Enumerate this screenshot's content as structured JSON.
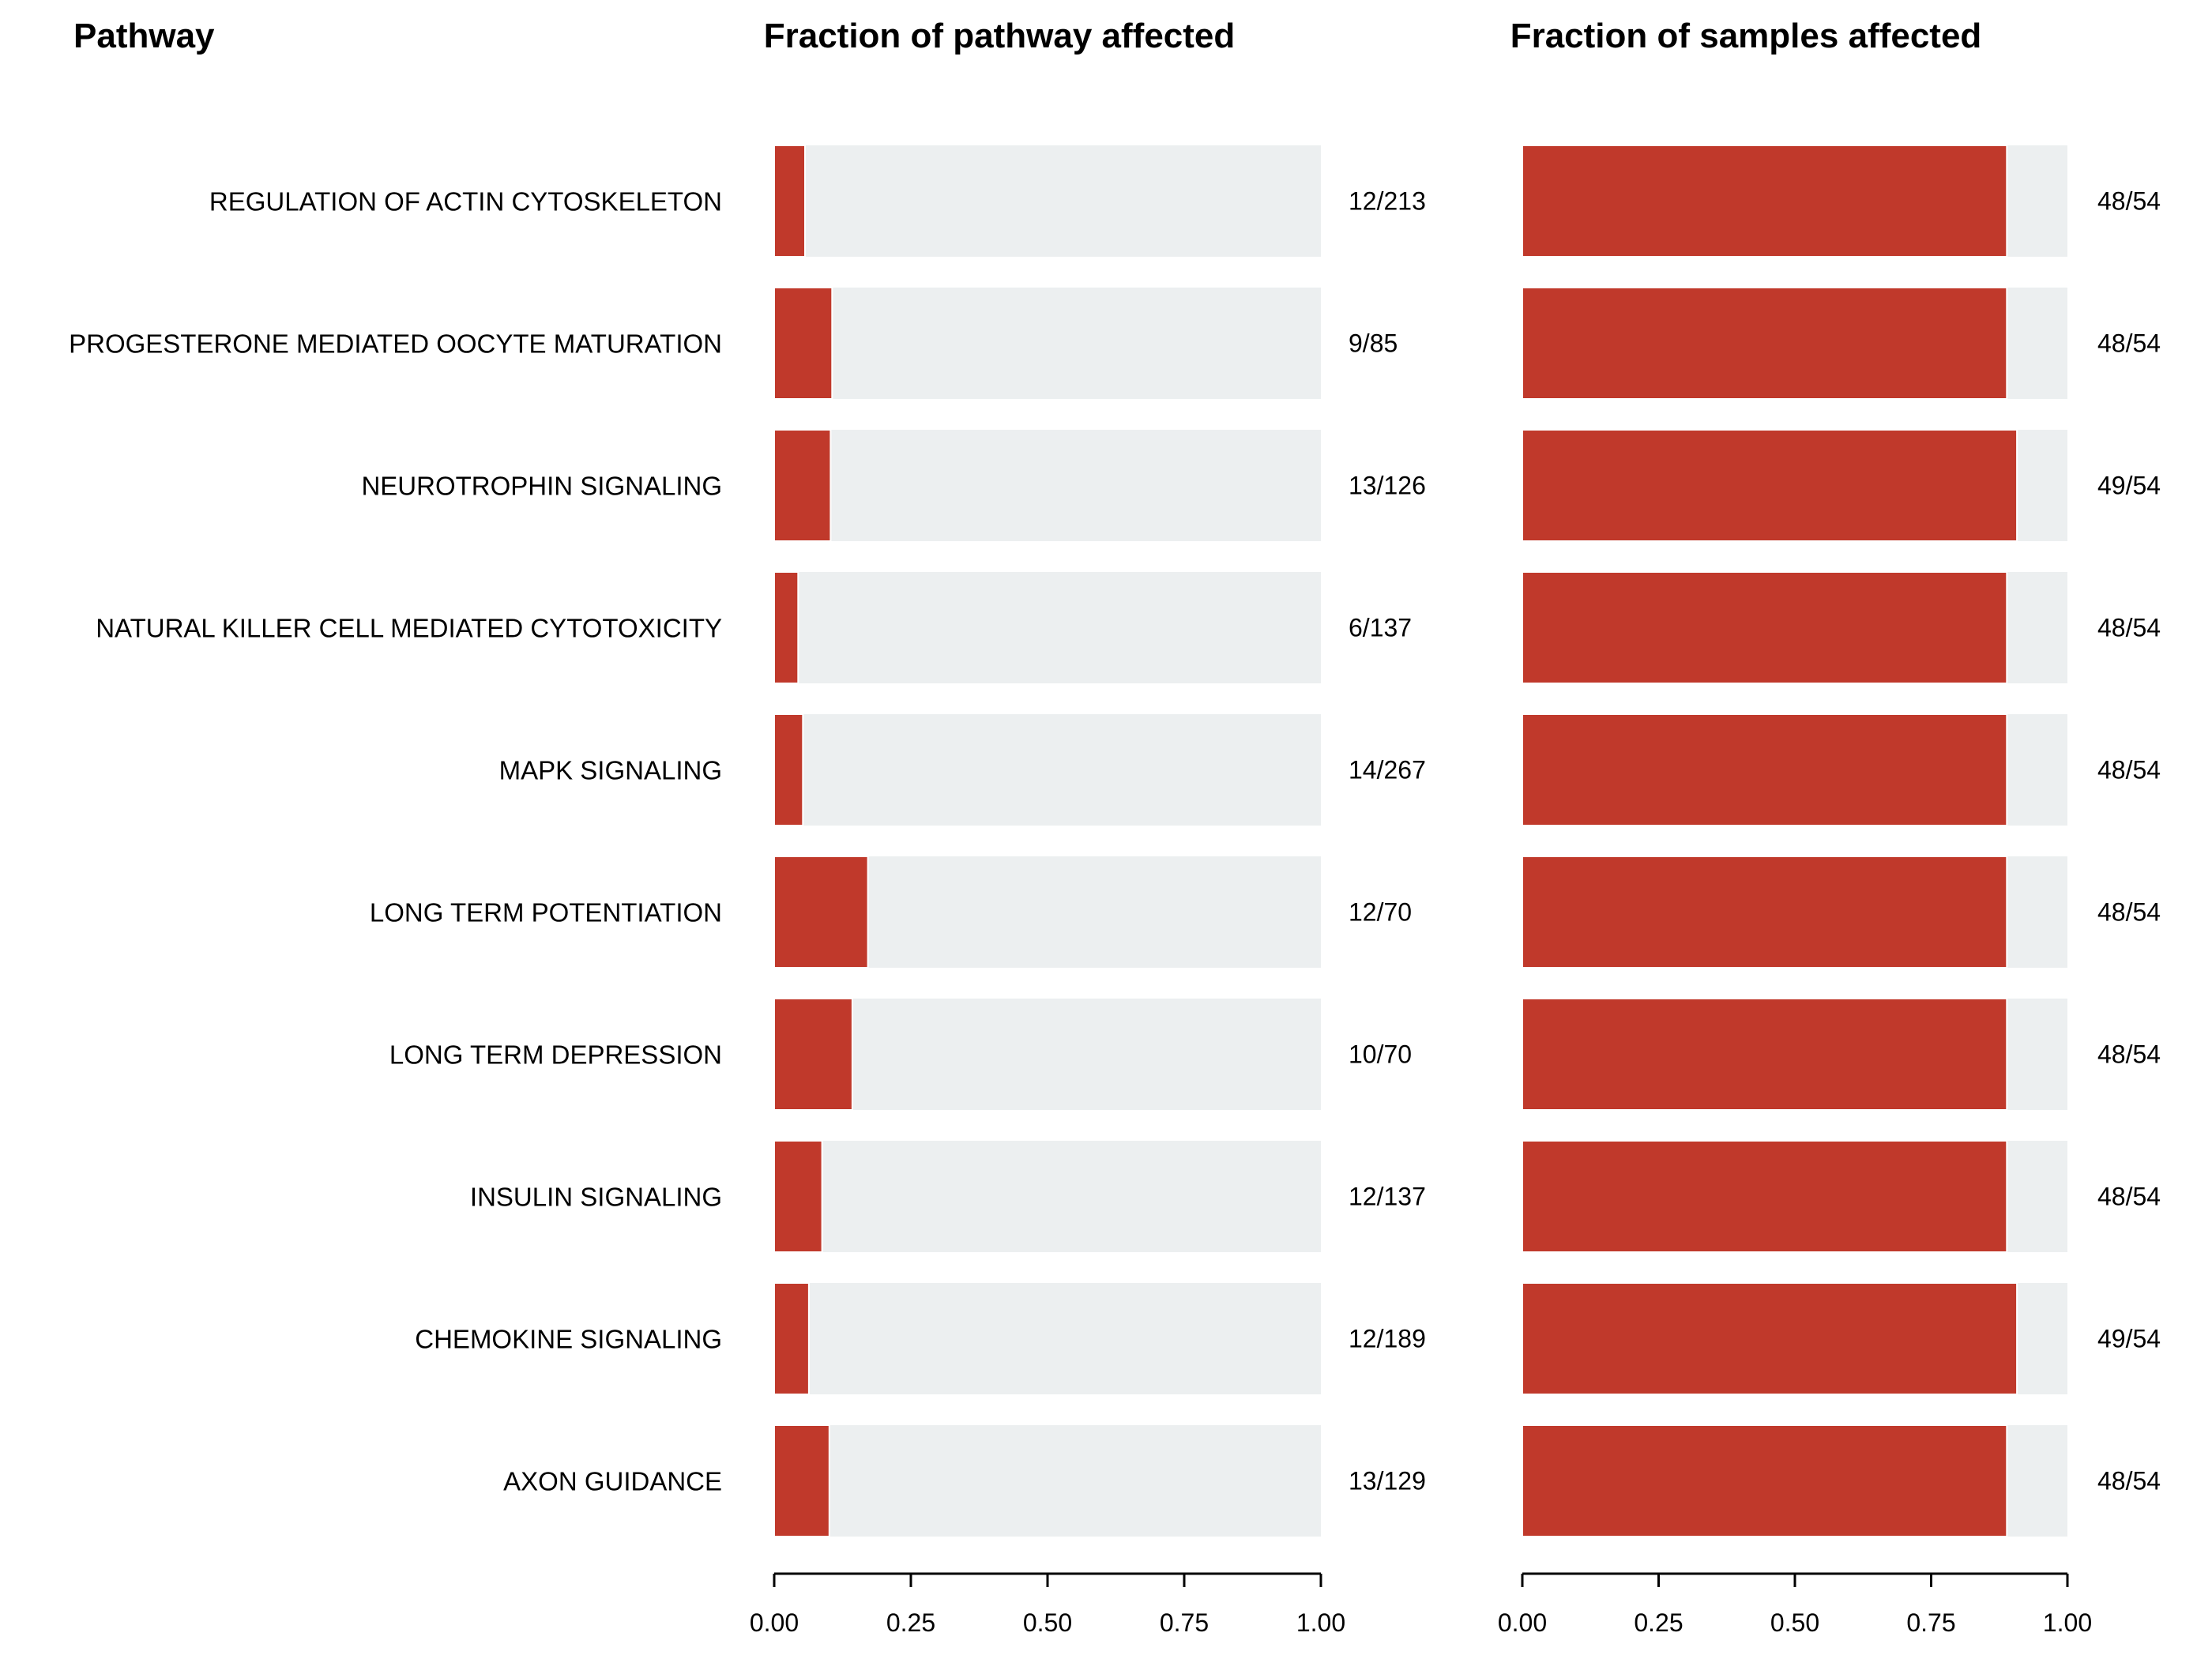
{
  "headers": {
    "pathway": "Pathway",
    "pathway_fraction": "Fraction of pathway affected",
    "sample_fraction": "Fraction of samples affected"
  },
  "colors": {
    "bar": "#c0392b",
    "background": "#eceff0"
  },
  "chart_data": [
    {
      "type": "bar",
      "orientation": "horizontal",
      "title": "Fraction of pathway affected",
      "xlim": [
        0,
        1
      ],
      "ticks": [
        "0.00",
        "0.25",
        "0.50",
        "0.75",
        "1.00"
      ],
      "categories": [
        "REGULATION OF ACTIN CYTOSKELETON",
        "PROGESTERONE MEDIATED OOCYTE MATURATION",
        "NEUROTROPHIN SIGNALING",
        "NATURAL KILLER CELL MEDIATED CYTOTOXICITY",
        "MAPK SIGNALING",
        "LONG TERM POTENTIATION",
        "LONG TERM DEPRESSION",
        "INSULIN SIGNALING",
        "CHEMOKINE SIGNALING",
        "AXON GUIDANCE"
      ],
      "values": [
        0.0563,
        0.1059,
        0.1032,
        0.0438,
        0.0524,
        0.1714,
        0.1429,
        0.0876,
        0.0635,
        0.1008
      ],
      "labels": [
        "12/213",
        "9/85",
        "13/126",
        "6/137",
        "14/267",
        "12/70",
        "10/70",
        "12/137",
        "12/189",
        "13/129"
      ]
    },
    {
      "type": "bar",
      "orientation": "horizontal",
      "title": "Fraction of samples affected",
      "xlim": [
        0,
        1
      ],
      "ticks": [
        "0.00",
        "0.25",
        "0.50",
        "0.75",
        "1.00"
      ],
      "categories": [
        "REGULATION OF ACTIN CYTOSKELETON",
        "PROGESTERONE MEDIATED OOCYTE MATURATION",
        "NEUROTROPHIN SIGNALING",
        "NATURAL KILLER CELL MEDIATED CYTOTOXICITY",
        "MAPK SIGNALING",
        "LONG TERM POTENTIATION",
        "LONG TERM DEPRESSION",
        "INSULIN SIGNALING",
        "CHEMOKINE SIGNALING",
        "AXON GUIDANCE"
      ],
      "values": [
        0.8889,
        0.8889,
        0.9074,
        0.8889,
        0.8889,
        0.8889,
        0.8889,
        0.8889,
        0.9074,
        0.8889
      ],
      "labels": [
        "48/54",
        "48/54",
        "49/54",
        "48/54",
        "48/54",
        "48/54",
        "48/54",
        "48/54",
        "49/54",
        "48/54"
      ]
    }
  ]
}
